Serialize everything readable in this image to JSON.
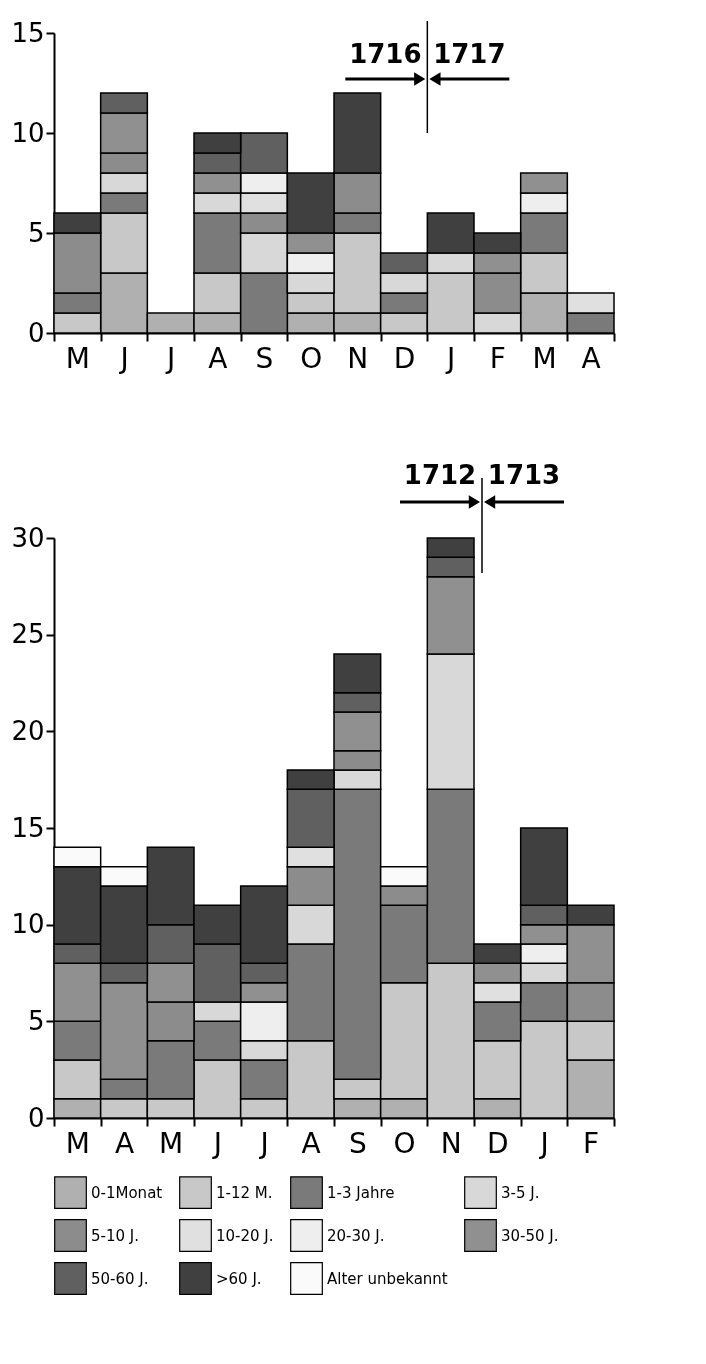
{
  "chart_data": [
    {
      "type": "bar",
      "stacked": true,
      "categories": [
        "M",
        "J",
        "J",
        "A",
        "S",
        "O",
        "N",
        "D",
        "J",
        "F",
        "M",
        "A"
      ],
      "ylim": [
        0,
        15
      ],
      "yticks": [
        0,
        5,
        10,
        15
      ],
      "grid": false,
      "legend": false,
      "annotations": [
        "1716",
        "1717"
      ],
      "series": [
        {
          "color": "#b0b0b0",
          "values": [
            null,
            3,
            1,
            1,
            null,
            1,
            1,
            null,
            null,
            null,
            2,
            null
          ]
        },
        {
          "color": "#c8c8c8",
          "values": [
            1,
            3,
            null,
            2,
            null,
            1,
            4,
            1,
            3,
            null,
            2,
            null
          ]
        },
        {
          "color": "#7a7a7a",
          "values": [
            1,
            1,
            null,
            3,
            3,
            null,
            1,
            1,
            null,
            null,
            2,
            1
          ]
        },
        {
          "color": "#d8d8d8",
          "values": [
            null,
            1,
            null,
            1,
            2,
            1,
            null,
            1,
            1,
            1,
            null,
            null
          ]
        },
        {
          "color": "#8c8c8c",
          "values": [
            3,
            1,
            null,
            null,
            1,
            null,
            2,
            null,
            null,
            2,
            null,
            null
          ]
        },
        {
          "color": "#e0e0e0",
          "values": [
            null,
            null,
            null,
            null,
            1,
            null,
            null,
            null,
            null,
            null,
            null,
            1
          ]
        },
        {
          "color": "#eeeeee",
          "values": [
            null,
            null,
            null,
            null,
            1,
            1,
            null,
            null,
            null,
            null,
            1,
            null
          ]
        },
        {
          "color": "#909090",
          "values": [
            null,
            2,
            null,
            1,
            null,
            1,
            null,
            null,
            null,
            1,
            1,
            null
          ]
        },
        {
          "color": "#606060",
          "values": [
            null,
            1,
            null,
            1,
            2,
            null,
            null,
            1,
            null,
            null,
            null,
            null
          ]
        },
        {
          "color": "#404040",
          "values": [
            1,
            null,
            null,
            1,
            null,
            3,
            4,
            null,
            2,
            1,
            null,
            null
          ]
        }
      ]
    },
    {
      "type": "bar",
      "stacked": true,
      "categories": [
        "M",
        "A",
        "M",
        "J",
        "J",
        "A",
        "S",
        "O",
        "N",
        "D",
        "J",
        "F"
      ],
      "ylim": [
        0,
        30
      ],
      "yticks": [
        0,
        5,
        10,
        15,
        20,
        25,
        30
      ],
      "grid": false,
      "legend": "bottom",
      "annotations": [
        "1712",
        "1713"
      ],
      "series": [
        {
          "name": "0-1Monat",
          "color": "#b0b0b0",
          "values": [
            1,
            null,
            null,
            null,
            null,
            null,
            1,
            1,
            null,
            1,
            null,
            3
          ]
        },
        {
          "name": "1-12 M.",
          "color": "#c8c8c8",
          "values": [
            2,
            1,
            1,
            3,
            1,
            4,
            1,
            6,
            8,
            3,
            5,
            2
          ]
        },
        {
          "name": "1-3 Jahre",
          "color": "#7a7a7a",
          "values": [
            2,
            1,
            3,
            2,
            2,
            5,
            15,
            4,
            9,
            2,
            2,
            null
          ]
        },
        {
          "name": "3-5 J.",
          "color": "#d8d8d8",
          "values": [
            null,
            null,
            null,
            1,
            1,
            2,
            1,
            null,
            7,
            null,
            1,
            null
          ]
        },
        {
          "name": "5-10 J.",
          "color": "#8c8c8c",
          "values": [
            null,
            null,
            2,
            null,
            null,
            2,
            1,
            1,
            null,
            null,
            null,
            2
          ]
        },
        {
          "name": "10-20 J.",
          "color": "#e0e0e0",
          "values": [
            null,
            null,
            null,
            null,
            null,
            1,
            null,
            null,
            null,
            1,
            null,
            null
          ]
        },
        {
          "name": "20-30 J.",
          "color": "#eeeeee",
          "values": [
            null,
            null,
            null,
            null,
            2,
            null,
            null,
            null,
            null,
            null,
            1,
            null
          ]
        },
        {
          "name": "30-50 J.",
          "color": "#909090",
          "values": [
            3,
            5,
            2,
            null,
            1,
            null,
            2,
            null,
            4,
            1,
            1,
            3
          ]
        },
        {
          "name": "50-60 J.",
          "color": "#606060",
          "values": [
            1,
            1,
            2,
            3,
            1,
            3,
            1,
            null,
            1,
            null,
            1,
            null
          ]
        },
        {
          "name": ">60 J.",
          "color": "#404040",
          "values": [
            4,
            4,
            4,
            2,
            4,
            1,
            2,
            null,
            1,
            1,
            4,
            1
          ]
        },
        {
          "name": "Alter unbekannt",
          "color": "#fafafa",
          "values": [
            1,
            1,
            null,
            null,
            null,
            null,
            null,
            1,
            null,
            null,
            null,
            null
          ]
        }
      ]
    }
  ]
}
